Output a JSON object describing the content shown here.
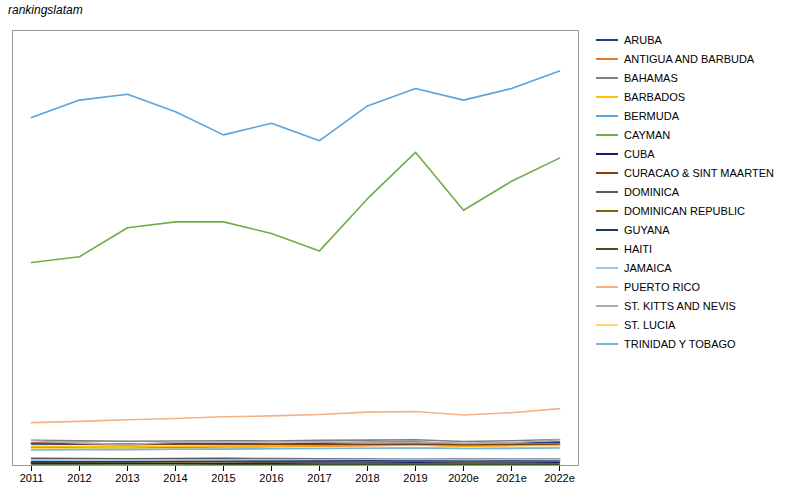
{
  "chart_data": {
    "type": "line",
    "categories": [
      "2011",
      "2012",
      "2013",
      "2014",
      "2015",
      "2016",
      "2017",
      "2018",
      "2019",
      "2020e",
      "2021e",
      "2022e"
    ],
    "series": [
      {
        "name": "ARUBA",
        "color": "#1f3c88",
        "values": [
          373,
          368,
          358,
          373,
          378,
          363,
          383,
          398,
          403,
          373,
          388,
          403
        ]
      },
      {
        "name": "ANTIGUA AND BARBUDA",
        "color": "#e87722",
        "values": [
          313,
          303,
          298,
          313,
          318,
          323,
          333,
          343,
          353,
          333,
          348,
          363
        ]
      },
      {
        "name": "BAHAMAS",
        "color": "#808080",
        "values": [
          435,
          425,
          418,
          422,
          428,
          423,
          433,
          438,
          443,
          413,
          428,
          448
        ]
      },
      {
        "name": "BARBADOS",
        "color": "#ffc000",
        "values": [
          333,
          328,
          323,
          333,
          338,
          338,
          343,
          348,
          353,
          338,
          343,
          353
        ]
      },
      {
        "name": "BERMUDA",
        "color": "#5ba3d9",
        "values": [
          6000,
          6300,
          6400,
          6100,
          5700,
          5900,
          5600,
          6200,
          6500,
          6300,
          6500,
          6800
        ]
      },
      {
        "name": "CAYMAN",
        "color": "#70ad47",
        "values": [
          3500,
          3600,
          4100,
          4200,
          4200,
          4000,
          3700,
          4600,
          5400,
          4400,
          4900,
          5300
        ]
      },
      {
        "name": "CUBA",
        "color": "#1a1a6e",
        "values": [
          37,
          37,
          38,
          39,
          40,
          41,
          42,
          44,
          46,
          42,
          44,
          46
        ]
      },
      {
        "name": "CURACAO & SINT MAARTEN",
        "color": "#843c0c",
        "values": [
          385,
          378,
          368,
          373,
          370,
          368,
          363,
          365,
          368,
          358,
          363,
          370
        ]
      },
      {
        "name": "DOMINICA",
        "color": "#595959",
        "values": [
          122,
          120,
          117,
          120,
          122,
          120,
          117,
          114,
          112,
          110,
          112,
          114
        ]
      },
      {
        "name": "DOMINICAN REPUBLIC",
        "color": "#806000",
        "values": [
          57,
          59,
          60,
          62,
          65,
          67,
          69,
          70,
          72,
          67,
          70,
          72
        ]
      },
      {
        "name": "GUYANA",
        "color": "#203864",
        "values": [
          62,
          64,
          67,
          72,
          77,
          80,
          84,
          90,
          97,
          87,
          92,
          102
        ]
      },
      {
        "name": "HAITI",
        "color": "#375623",
        "values": [
          9,
          9,
          9,
          9,
          10,
          10,
          10,
          10,
          11,
          11,
          11,
          11
        ]
      },
      {
        "name": "JAMAICA",
        "color": "#9dc3e6",
        "values": [
          92,
          94,
          96,
          98,
          100,
          102,
          104,
          107,
          110,
          102,
          106,
          110
        ]
      },
      {
        "name": "PUERTO RICO",
        "color": "#f4b183",
        "values": [
          740,
          760,
          790,
          810,
          840,
          855,
          880,
          920,
          930,
          870,
          910,
          980
        ]
      },
      {
        "name": "ST. KITTS AND NEVIS",
        "color": "#aeaaaa",
        "values": [
          430,
          385,
          360,
          400,
          405,
          405,
          410,
          395,
          400,
          382,
          390,
          445
        ]
      },
      {
        "name": "ST. LUCIA",
        "color": "#ffd966",
        "values": [
          293,
          288,
          283,
          288,
          293,
          293,
          298,
          298,
          308,
          298,
          303,
          318
        ]
      },
      {
        "name": "TRINIDAD Y TOBAGO",
        "color": "#70b8d8",
        "values": [
          268,
          273,
          273,
          280,
          283,
          288,
          293,
          298,
          300,
          293,
          295,
          303
        ]
      }
    ],
    "ylim": [
      0,
      7500
    ],
    "yticks": [],
    "grid": false,
    "legend": "right",
    "tick_labels": "x",
    "annotations": [
      "rankingslatam"
    ]
  }
}
